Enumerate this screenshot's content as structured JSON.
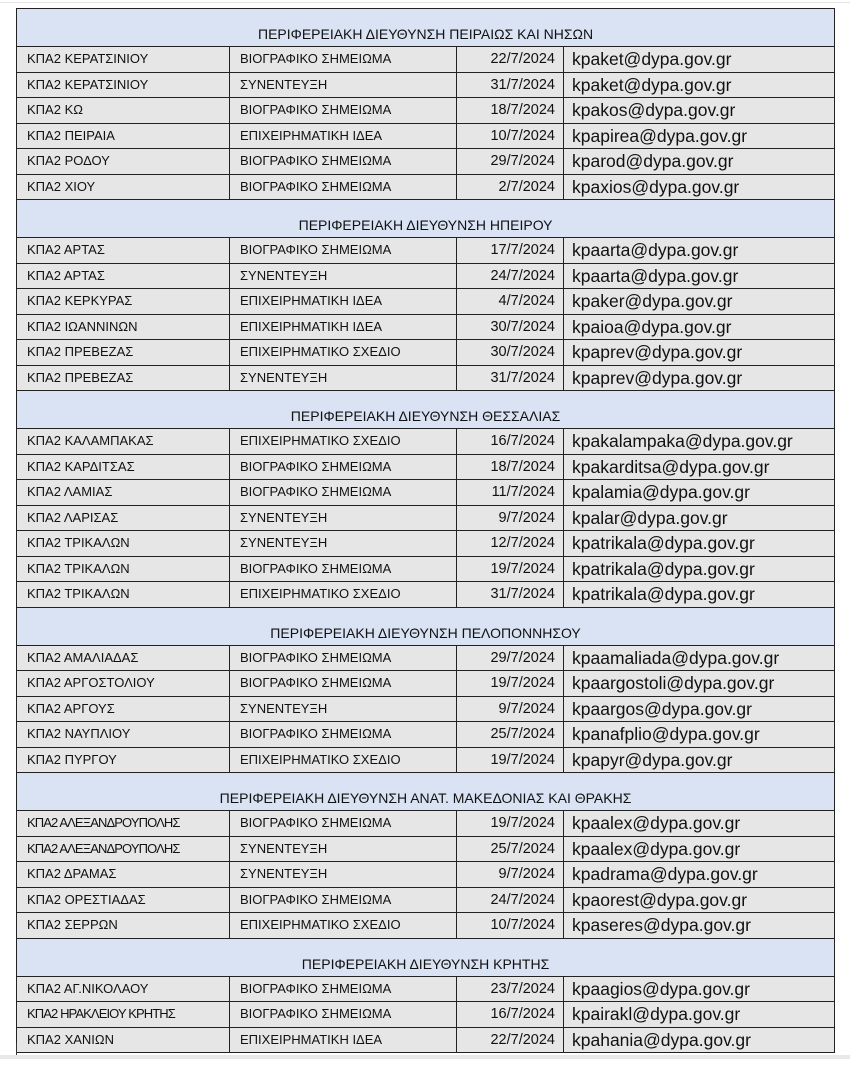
{
  "sections": [
    {
      "title": "ΠΕΡΙΦΕΡΕΙΑΚΗ ΔΙΕΥΘΥΝΣΗ ΠΕΙΡΑΙΩΣ ΚΑΙ ΝΗΣΩΝ",
      "rows": [
        [
          "ΚΠΑ2 ΚΕΡΑΤΣΙΝΙΟΥ",
          "ΒΙΟΓΡΑΦΙΚΟ ΣΗΜΕΙΩΜΑ",
          "22/7/2024",
          "kpaket@dypa.gov.gr"
        ],
        [
          "ΚΠΑ2 ΚΕΡΑΤΣΙΝΙΟΥ",
          "ΣΥΝΕΝΤΕΥΞΗ",
          "31/7/2024",
          "kpaket@dypa.gov.gr"
        ],
        [
          "ΚΠΑ2 ΚΩ",
          "ΒΙΟΓΡΑΦΙΚΟ ΣΗΜΕΙΩΜΑ",
          "18/7/2024",
          "kpakos@dypa.gov.gr"
        ],
        [
          "ΚΠΑ2 ΠΕΙΡΑΙΑ",
          "ΕΠΙΧΕΙΡΗΜΑΤΙΚΗ ΙΔΕΑ",
          "10/7/2024",
          "kpapirea@dypa.gov.gr"
        ],
        [
          "ΚΠΑ2 ΡΟΔΟΥ",
          "ΒΙΟΓΡΑΦΙΚΟ ΣΗΜΕΙΩΜΑ",
          "29/7/2024",
          "kparod@dypa.gov.gr"
        ],
        [
          "ΚΠΑ2 ΧΙΟΥ",
          "ΒΙΟΓΡΑΦΙΚΟ ΣΗΜΕΙΩΜΑ",
          "2/7/2024",
          "kpaxios@dypa.gov.gr"
        ]
      ]
    },
    {
      "title": "ΠΕΡΙΦΕΡΕΙΑΚΗ ΔΙΕΥΘΥΝΣΗ ΗΠΕΙΡΟΥ",
      "rows": [
        [
          "ΚΠΑ2 ΑΡΤΑΣ",
          "ΒΙΟΓΡΑΦΙΚΟ ΣΗΜΕΙΩΜΑ",
          "17/7/2024",
          "kpaarta@dypa.gov.gr"
        ],
        [
          "ΚΠΑ2 ΑΡΤΑΣ",
          "ΣΥΝΕΝΤΕΥΞΗ",
          "24/7/2024",
          "kpaarta@dypa.gov.gr"
        ],
        [
          "ΚΠΑ2 ΚΕΡΚΥΡΑΣ",
          "ΕΠΙΧΕΙΡΗΜΑΤΙΚΗ ΙΔΕΑ",
          "4/7/2024",
          "kpaker@dypa.gov.gr"
        ],
        [
          "ΚΠΑ2 ΙΩΑΝΝΙΝΩΝ",
          "ΕΠΙΧΕΙΡΗΜΑΤΙΚΗ ΙΔΕΑ",
          "30/7/2024",
          "kpaioa@dypa.gov.gr"
        ],
        [
          "ΚΠΑ2 ΠΡΕΒΕΖΑΣ",
          "ΕΠΙΧΕΙΡΗΜΑΤΙΚΟ ΣΧΕΔΙΟ",
          "30/7/2024",
          "kpaprev@dypa.gov.gr"
        ],
        [
          "ΚΠΑ2 ΠΡΕΒΕΖΑΣ",
          "ΣΥΝΕΝΤΕΥΞΗ",
          "31/7/2024",
          "kpaprev@dypa.gov.gr"
        ]
      ]
    },
    {
      "title": "ΠΕΡΙΦΕΡΕΙΑΚΗ ΔΙΕΥΘΥΝΣΗ ΘΕΣΣΑΛΙΑΣ",
      "rows": [
        [
          "ΚΠΑ2 ΚΑΛΑΜΠΑΚΑΣ",
          "ΕΠΙΧΕΙΡΗΜΑΤΙΚΟ ΣΧΕΔΙΟ",
          "16/7/2024",
          "kpakalampaka@dypa.gov.gr"
        ],
        [
          "ΚΠΑ2 ΚΑΡΔΙΤΣΑΣ",
          "ΒΙΟΓΡΑΦΙΚΟ ΣΗΜΕΙΩΜΑ",
          "18/7/2024",
          "kpakarditsa@dypa.gov.gr"
        ],
        [
          "ΚΠΑ2 ΛΑΜΙΑΣ",
          "ΒΙΟΓΡΑΦΙΚΟ ΣΗΜΕΙΩΜΑ",
          "11/7/2024",
          "kpalamia@dypa.gov.gr"
        ],
        [
          "ΚΠΑ2 ΛΑΡΙΣΑΣ",
          "ΣΥΝΕΝΤΕΥΞΗ",
          "9/7/2024",
          "kpalar@dypa.gov.gr"
        ],
        [
          "ΚΠΑ2 ΤΡΙΚΑΛΩΝ",
          "ΣΥΝΕΝΤΕΥΞΗ",
          "12/7/2024",
          "kpatrikala@dypa.gov.gr"
        ],
        [
          "ΚΠΑ2 ΤΡΙΚΑΛΩΝ",
          "ΒΙΟΓΡΑΦΙΚΟ ΣΗΜΕΙΩΜΑ",
          "19/7/2024",
          "kpatrikala@dypa.gov.gr"
        ],
        [
          "ΚΠΑ2 ΤΡΙΚΑΛΩΝ",
          "ΕΠΙΧΕΙΡΗΜΑΤΙΚΟ ΣΧΕΔΙΟ",
          "31/7/2024",
          "kpatrikala@dypa.gov.gr"
        ]
      ]
    },
    {
      "title": "ΠΕΡΙΦΕΡΕΙΑΚΗ ΔΙΕΥΘΥΝΣΗ ΠΕΛΟΠΟΝΝΗΣΟΥ",
      "rows": [
        [
          "ΚΠΑ2 ΑΜΑΛΙΑΔΑΣ",
          "ΒΙΟΓΡΑΦΙΚΟ ΣΗΜΕΙΩΜΑ",
          "29/7/2024",
          "kpaamaliada@dypa.gov.gr"
        ],
        [
          "ΚΠΑ2 ΑΡΓΟΣΤΟΛΙΟΥ",
          "ΒΙΟΓΡΑΦΙΚΟ ΣΗΜΕΙΩΜΑ",
          "19/7/2024",
          "kpaargostoli@dypa.gov.gr"
        ],
        [
          "ΚΠΑ2 ΑΡΓΟΥΣ",
          "ΣΥΝΕΝΤΕΥΞΗ",
          "9/7/2024",
          "kpaargos@dypa.gov.gr"
        ],
        [
          "ΚΠΑ2 ΝΑΥΠΛΙΟΥ",
          "ΒΙΟΓΡΑΦΙΚΟ ΣΗΜΕΙΩΜΑ",
          "25/7/2024",
          "kpanafplio@dypa.gov.gr"
        ],
        [
          "ΚΠΑ2 ΠΥΡΓΟΥ",
          "ΕΠΙΧΕΙΡΗΜΑΤΙΚΟ ΣΧΕΔΙΟ",
          "19/7/2024",
          "kpapyr@dypa.gov.gr"
        ]
      ]
    },
    {
      "title": "ΠΕΡΙΦΕΡΕΙΑΚΗ ΔΙΕΥΘΥΝΣΗ ΑΝΑΤ. ΜΑΚΕΔΟΝΙΑΣ ΚΑΙ ΘΡΑΚΗΣ",
      "rows": [
        [
          "ΚΠΑ2 ΑΛΕΞΑΝΔΡΟΥΠΟΛΗΣ",
          "ΒΙΟΓΡΑΦΙΚΟ ΣΗΜΕΙΩΜΑ",
          "19/7/2024",
          "kpaalex@dypa.gov.gr"
        ],
        [
          "ΚΠΑ2 ΑΛΕΞΑΝΔΡΟΥΠΟΛΗΣ",
          "ΣΥΝΕΝΤΕΥΞΗ",
          "25/7/2024",
          "kpaalex@dypa.gov.gr"
        ],
        [
          "ΚΠΑ2 ΔΡΑΜΑΣ",
          "ΣΥΝΕΝΤΕΥΞΗ",
          "9/7/2024",
          "kpadrama@dypa.gov.gr"
        ],
        [
          "ΚΠΑ2 ΟΡΕΣΤΙΑΔΑΣ",
          "ΒΙΟΓΡΑΦΙΚΟ ΣΗΜΕΙΩΜΑ",
          "24/7/2024",
          "kpaorest@dypa.gov.gr"
        ],
        [
          "ΚΠΑ2 ΣΕΡΡΩΝ",
          "ΕΠΙΧΕΙΡΗΜΑΤΙΚΟ ΣΧΕΔΙΟ",
          "10/7/2024",
          "kpaseres@dypa.gov.gr"
        ]
      ]
    },
    {
      "title": "ΠΕΡΙΦΕΡΕΙΑΚΗ ΔΙΕΥΘΥΝΣΗ ΚΡΗΤΗΣ",
      "rows": [
        [
          "ΚΠΑ2 ΑΓ.ΝΙΚΟΛΑΟΥ",
          "ΒΙΟΓΡΑΦΙΚΟ ΣΗΜΕΙΩΜΑ",
          "23/7/2024",
          "kpaagios@dypa.gov.gr"
        ],
        [
          "ΚΠΑ2 ΗΡΑΚΛΕΙΟΥ ΚΡΗΤΗΣ",
          "ΒΙΟΓΡΑΦΙΚΟ ΣΗΜΕΙΩΜΑ",
          "16/7/2024",
          "kpairakl@dypa.gov.gr"
        ],
        [
          "ΚΠΑ2 ΧΑΝΙΩΝ",
          "ΕΠΙΧΕΙΡΗΜΑΤΙΚΗ ΙΔΕΑ",
          "22/7/2024",
          "kpahania@dypa.gov.gr"
        ]
      ]
    }
  ],
  "colors": {
    "section_header_bg": "#dae3f3",
    "cell_bg": "#e6e6e6",
    "border": "#222222"
  }
}
